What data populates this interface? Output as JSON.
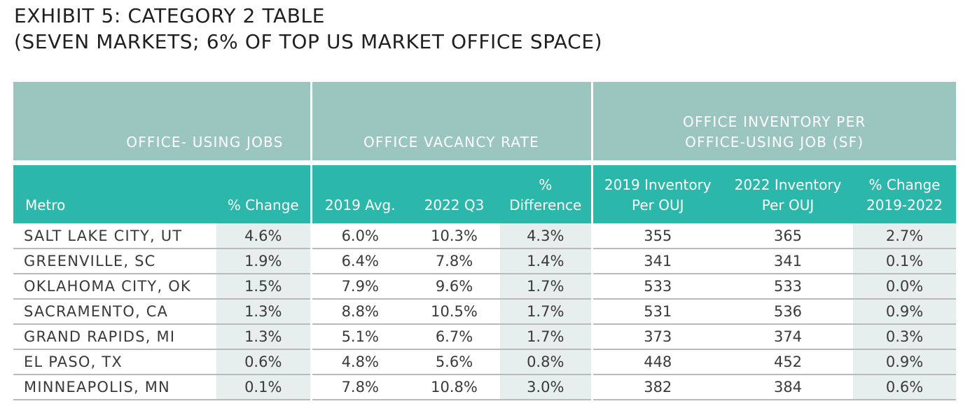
{
  "title": {
    "line1": "EXHIBIT 5: CATEGORY 2 TABLE",
    "line2": "(SEVEN MARKETS; 6% OF TOP US MARKET OFFICE SPACE)"
  },
  "group_headers": {
    "jobs": [
      "OFFICE-",
      "USING",
      "JOBS"
    ],
    "vacancy": "OFFICE VACANCY RATE",
    "inventory": [
      "OFFICE INVENTORY PER",
      "OFFICE-USING JOB (SF)"
    ]
  },
  "column_headers": {
    "metro": "Metro",
    "jobs_change": "% Change",
    "avg_2019": "2019 Avg.",
    "q3_2022": "2022 Q3",
    "difference": [
      "%",
      "Difference"
    ],
    "inv_2019": [
      "2019 Inventory",
      "Per OUJ"
    ],
    "inv_2022": [
      "2022 Inventory",
      "Per OUJ"
    ],
    "inv_change": [
      "% Change",
      "2019-2022"
    ]
  },
  "rows": [
    {
      "metro": "SALT LAKE CITY, UT",
      "jobs_change": "4.6%",
      "avg_2019": "6.0%",
      "q3_2022": "10.3%",
      "difference": "4.3%",
      "inv_2019": "355",
      "inv_2022": "365",
      "inv_change": "2.7%"
    },
    {
      "metro": "GREENVILLE, SC",
      "jobs_change": "1.9%",
      "avg_2019": "6.4%",
      "q3_2022": "7.8%",
      "difference": "1.4%",
      "inv_2019": "341",
      "inv_2022": "341",
      "inv_change": "0.1%"
    },
    {
      "metro": "OKLAHOMA CITY, OK",
      "jobs_change": "1.5%",
      "avg_2019": "7.9%",
      "q3_2022": "9.6%",
      "difference": "1.7%",
      "inv_2019": "533",
      "inv_2022": "533",
      "inv_change": "0.0%"
    },
    {
      "metro": "SACRAMENTO, CA",
      "jobs_change": "1.3%",
      "avg_2019": "8.8%",
      "q3_2022": "10.5%",
      "difference": "1.7%",
      "inv_2019": "531",
      "inv_2022": "536",
      "inv_change": "0.9%"
    },
    {
      "metro": "GRAND RAPIDS, MI",
      "jobs_change": "1.3%",
      "avg_2019": "5.1%",
      "q3_2022": "6.7%",
      "difference": "1.7%",
      "inv_2019": "373",
      "inv_2022": "374",
      "inv_change": "0.3%"
    },
    {
      "metro": "EL PASO, TX",
      "jobs_change": "0.6%",
      "avg_2019": "4.8%",
      "q3_2022": "5.6%",
      "difference": "0.8%",
      "inv_2019": "448",
      "inv_2022": "452",
      "inv_change": "0.9%"
    },
    {
      "metro": "MINNEAPOLIS, MN",
      "jobs_change": "0.1%",
      "avg_2019": "7.8%",
      "q3_2022": "10.8%",
      "difference": "3.0%",
      "inv_2019": "382",
      "inv_2022": "384",
      "inv_change": "0.6%"
    }
  ],
  "colors": {
    "group_header_bg": "#9bc6c0",
    "sub_header_bg": "#2bb7aa",
    "shaded_cell_bg": "#e6efed",
    "row_rule": "#b9b9b9"
  }
}
